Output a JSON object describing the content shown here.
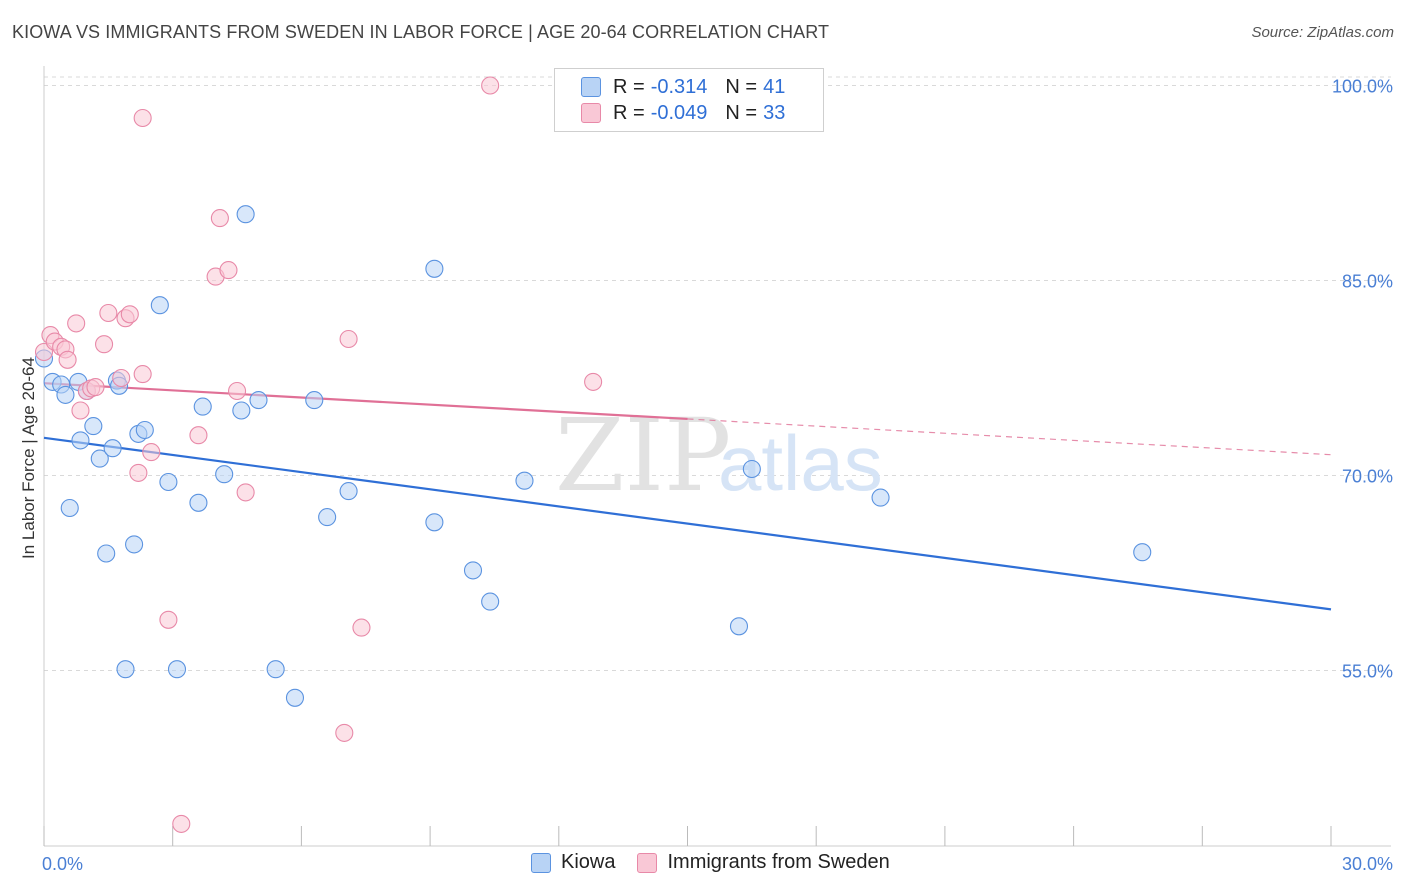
{
  "header": {
    "title": "KIOWA VS IMMIGRANTS FROM SWEDEN IN LABOR FORCE | AGE 20-64 CORRELATION CHART",
    "source": "Source: ZipAtlas.com"
  },
  "legend": {
    "r_label": "R =",
    "n_label": "N =",
    "series": [
      {
        "name": "Kiowa",
        "r": "-0.314",
        "n": "41",
        "fill": "#b8d3f5",
        "stroke": "#5b93e0"
      },
      {
        "name": "Immigrants from Sweden",
        "r": "-0.049",
        "n": "33",
        "fill": "#f9c8d6",
        "stroke": "#e889a8"
      }
    ]
  },
  "watermark": {
    "zip": "ZIP",
    "atlas": "atlas"
  },
  "colors": {
    "blue_line": "#2f6fd6",
    "pink_line": "#e07096",
    "grid": "#d9d9d9",
    "tick_label": "#4a7fd4"
  },
  "chart_data": {
    "type": "scatter",
    "title": "KIOWA VS IMMIGRANTS FROM SWEDEN IN LABOR FORCE | AGE 20-64 CORRELATION CHART",
    "xlabel": "",
    "ylabel": "In Labor Force | Age 20-64",
    "xlim": [
      0,
      30
    ],
    "ylim": [
      41.5,
      101.5
    ],
    "x_tick_labels": [
      {
        "value": 0,
        "label": "0.0%"
      },
      {
        "value": 30,
        "label": "30.0%"
      }
    ],
    "x_minor_ticks": [
      0,
      3,
      6,
      9,
      12,
      15,
      18,
      21,
      24,
      27,
      30
    ],
    "y_ticks": [
      {
        "value": 100,
        "label": "100.0%"
      },
      {
        "value": 85,
        "label": "85.0%"
      },
      {
        "value": 70,
        "label": "70.0%"
      },
      {
        "value": 55,
        "label": "55.0%"
      }
    ],
    "series": [
      {
        "name": "Kiowa",
        "r": -0.314,
        "n": 41,
        "points": [
          [
            0.0,
            79.0
          ],
          [
            0.2,
            77.2
          ],
          [
            0.4,
            77.0
          ],
          [
            0.5,
            76.2
          ],
          [
            0.6,
            67.5
          ],
          [
            0.8,
            77.2
          ],
          [
            0.85,
            72.7
          ],
          [
            1.0,
            76.5
          ],
          [
            1.15,
            73.8
          ],
          [
            1.3,
            71.3
          ],
          [
            1.45,
            64.0
          ],
          [
            1.6,
            72.1
          ],
          [
            1.7,
            77.3
          ],
          [
            1.75,
            76.9
          ],
          [
            1.9,
            55.1
          ],
          [
            2.1,
            64.7
          ],
          [
            2.2,
            73.2
          ],
          [
            2.35,
            73.5
          ],
          [
            2.7,
            83.1
          ],
          [
            2.9,
            69.5
          ],
          [
            3.1,
            55.1
          ],
          [
            3.6,
            67.9
          ],
          [
            3.7,
            75.3
          ],
          [
            4.2,
            70.1
          ],
          [
            4.6,
            75.0
          ],
          [
            4.7,
            90.1
          ],
          [
            5.0,
            75.8
          ],
          [
            5.4,
            55.1
          ],
          [
            5.85,
            52.9
          ],
          [
            6.3,
            75.8
          ],
          [
            6.6,
            66.8
          ],
          [
            7.1,
            68.8
          ],
          [
            9.1,
            66.4
          ],
          [
            9.1,
            85.9
          ],
          [
            10.0,
            62.7
          ],
          [
            10.4,
            60.3
          ],
          [
            11.2,
            69.6
          ],
          [
            16.2,
            58.4
          ],
          [
            16.5,
            70.5
          ],
          [
            19.5,
            68.3
          ],
          [
            25.6,
            64.1
          ]
        ],
        "trend": {
          "x0": 0,
          "y0": 72.9,
          "x1": 30,
          "y1": 59.7,
          "dashed_from": null
        }
      },
      {
        "name": "Immigrants from Sweden",
        "r": -0.049,
        "n": 33,
        "points": [
          [
            0.0,
            79.5
          ],
          [
            0.15,
            80.8
          ],
          [
            0.25,
            80.3
          ],
          [
            0.4,
            79.9
          ],
          [
            0.5,
            79.7
          ],
          [
            0.55,
            78.9
          ],
          [
            0.75,
            81.7
          ],
          [
            0.85,
            75.0
          ],
          [
            1.0,
            76.5
          ],
          [
            1.1,
            76.7
          ],
          [
            1.2,
            76.8
          ],
          [
            1.4,
            80.1
          ],
          [
            1.5,
            82.5
          ],
          [
            1.8,
            77.5
          ],
          [
            1.9,
            82.1
          ],
          [
            2.0,
            82.4
          ],
          [
            2.3,
            77.8
          ],
          [
            2.3,
            97.5
          ],
          [
            2.5,
            71.8
          ],
          [
            2.2,
            70.2
          ],
          [
            2.9,
            58.9
          ],
          [
            3.2,
            43.2
          ],
          [
            3.6,
            73.1
          ],
          [
            4.0,
            85.3
          ],
          [
            4.1,
            89.8
          ],
          [
            4.3,
            85.8
          ],
          [
            4.5,
            76.5
          ],
          [
            4.7,
            68.7
          ],
          [
            7.0,
            50.2
          ],
          [
            7.1,
            80.5
          ],
          [
            7.4,
            58.3
          ],
          [
            10.4,
            100.0
          ],
          [
            12.8,
            77.2
          ]
        ],
        "trend": {
          "x0": 0,
          "y0": 77.1,
          "x1": 30,
          "y1": 71.6,
          "dashed_from": 15
        }
      }
    ]
  }
}
